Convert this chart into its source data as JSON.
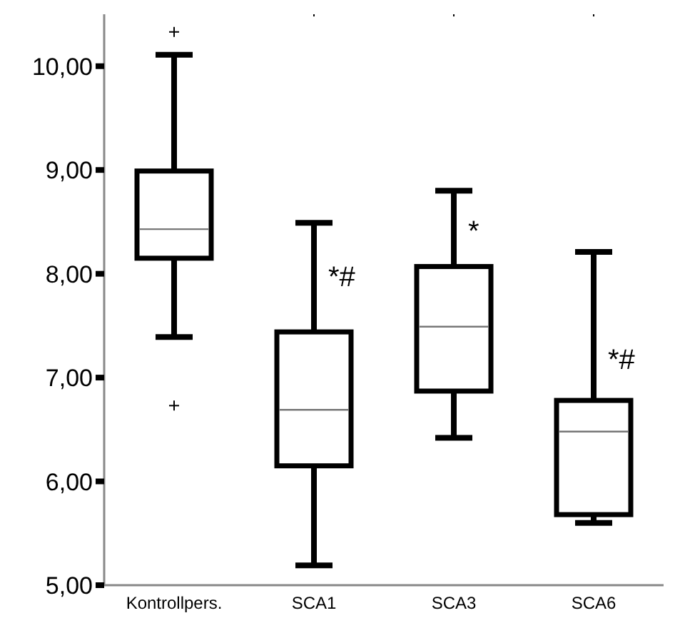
{
  "chart_data": {
    "type": "box",
    "categories": [
      "Kontrollpers.",
      "SCA1",
      "SCA3",
      "SCA6"
    ],
    "boxes": [
      {
        "low": 7.39,
        "q1": 8.15,
        "median": 8.43,
        "q3": 8.99,
        "high": 10.11,
        "outliers": [
          10.33,
          6.73
        ]
      },
      {
        "low": 5.19,
        "q1": 6.15,
        "median": 6.69,
        "q3": 7.44,
        "high": 8.49
      },
      {
        "low": 6.42,
        "q1": 6.87,
        "median": 7.49,
        "q3": 8.07,
        "high": 8.8
      },
      {
        "low": 5.6,
        "q1": 5.68,
        "median": 6.48,
        "q3": 6.78,
        "high": 8.21
      }
    ],
    "ylim": [
      5,
      10.5
    ],
    "yticks": [
      {
        "value": 5,
        "label": "5,00"
      },
      {
        "value": 6,
        "label": "6,00"
      },
      {
        "value": 7,
        "label": "7,00"
      },
      {
        "value": 8,
        "label": "8,00"
      },
      {
        "value": 9,
        "label": "9,00"
      },
      {
        "value": 10,
        "label": "10,00"
      }
    ],
    "annotations": [
      {
        "text": "*#",
        "x": "SCA1",
        "y": 7.98
      },
      {
        "text": "*",
        "x": "SCA3",
        "y": 8.42
      },
      {
        "text": "*#",
        "x": "SCA6",
        "y": 7.18
      }
    ]
  }
}
